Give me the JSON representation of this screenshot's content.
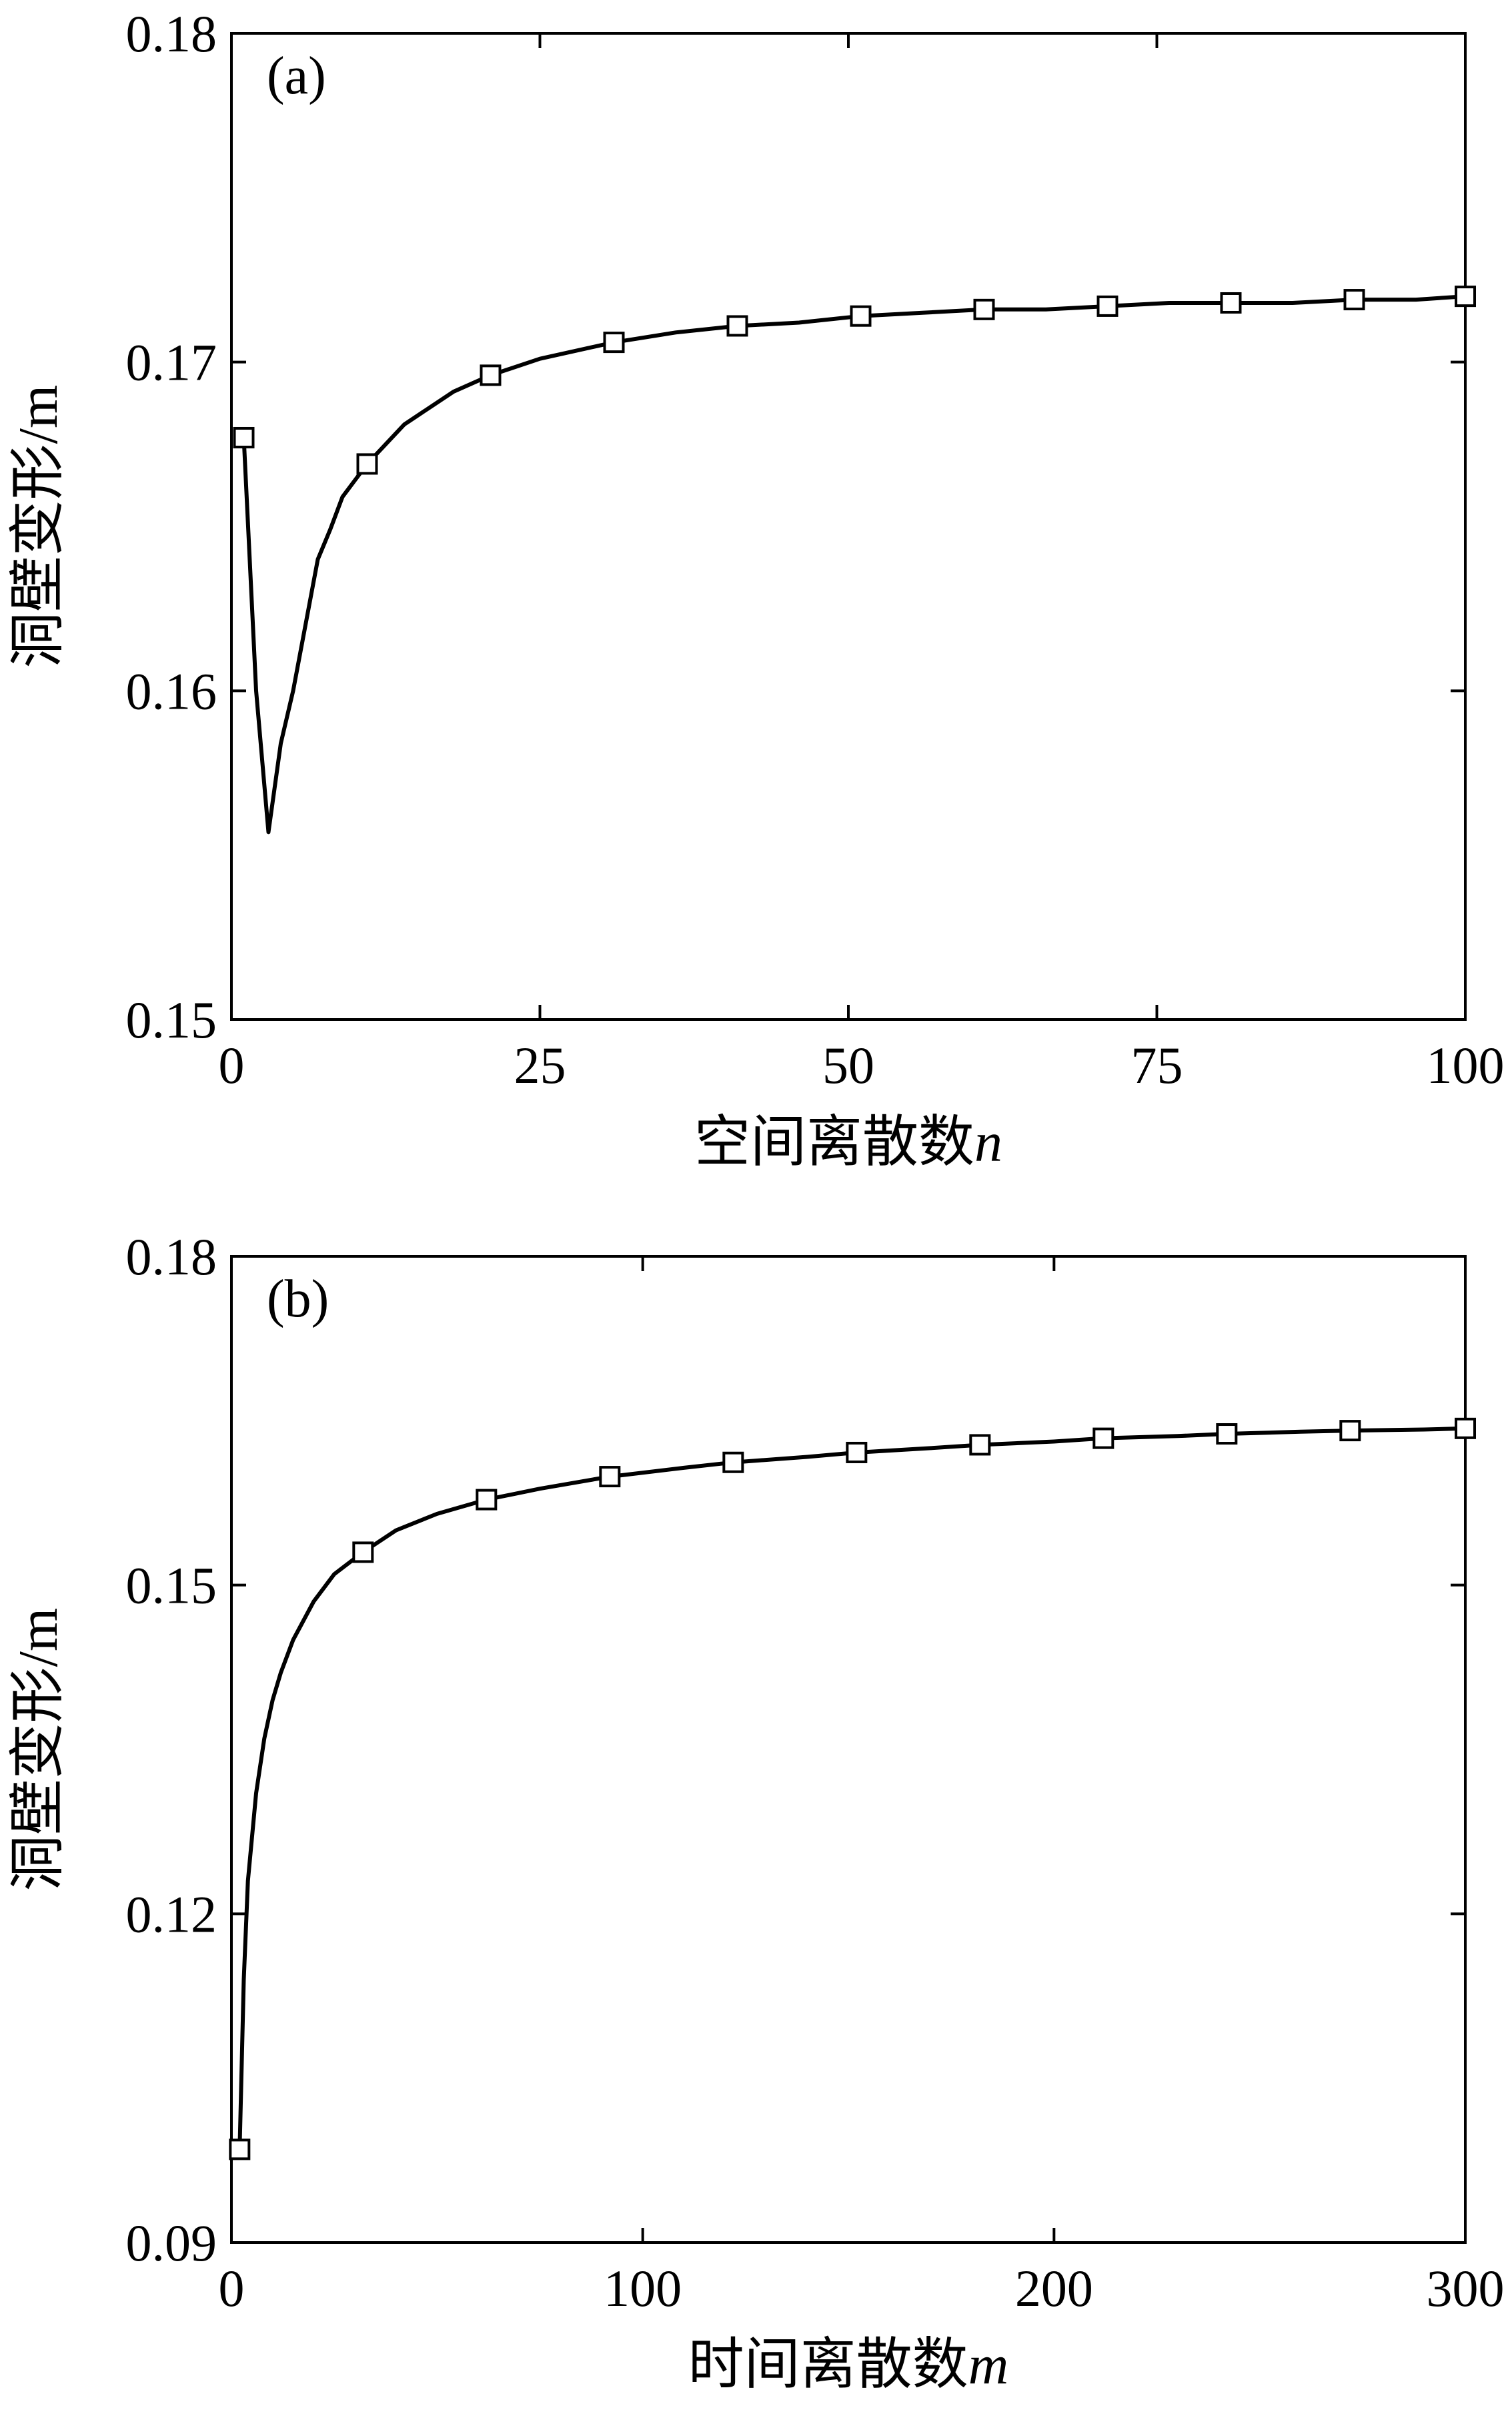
{
  "chart_data": [
    {
      "type": "line",
      "panel_label": "(a)",
      "xlabel": "空间离散数",
      "xlabel_var": "n",
      "ylabel": "洞壁变形/m",
      "xlim": [
        0,
        100
      ],
      "ylim": [
        0.15,
        0.18
      ],
      "x_ticks": [
        "0",
        "25",
        "50",
        "75",
        "100"
      ],
      "y_ticks": [
        "0.15",
        "0.16",
        "0.17",
        "0.18"
      ],
      "legend": "none",
      "grid": false,
      "marker": "open-square",
      "series": [
        {
          "x": [
            1,
            2,
            3,
            4,
            5,
            6,
            7,
            8,
            9,
            10,
            11,
            12,
            14,
            16,
            18,
            21,
            25,
            31,
            36,
            41,
            46,
            51,
            56,
            61,
            66,
            71,
            76,
            81,
            86,
            91,
            96,
            100
          ],
          "y": [
            0.1677,
            0.16,
            0.1557,
            0.1584,
            0.16,
            0.162,
            0.164,
            0.1649,
            0.1659,
            0.1664,
            0.1669,
            0.1673,
            0.1681,
            0.1686,
            0.1691,
            0.1696,
            0.1701,
            0.1706,
            0.1709,
            0.1711,
            0.1712,
            0.1714,
            0.1715,
            0.1716,
            0.1716,
            0.1717,
            0.1718,
            0.1718,
            0.1718,
            0.1719,
            0.1719,
            0.172
          ],
          "markers_x": [
            1,
            11,
            21,
            31,
            41,
            51,
            61,
            71,
            81,
            91,
            100
          ],
          "markers_y": [
            0.1677,
            0.1669,
            0.1696,
            0.1706,
            0.1711,
            0.1714,
            0.1716,
            0.1717,
            0.1718,
            0.1719,
            0.172
          ]
        }
      ]
    },
    {
      "type": "line",
      "panel_label": "(b)",
      "xlabel": "时间离散数",
      "xlabel_var": "m",
      "ylabel": "洞壁变形/m",
      "xlim": [
        0,
        300
      ],
      "ylim": [
        0.09,
        0.18
      ],
      "x_ticks": [
        "0",
        "100",
        "200",
        "300"
      ],
      "y_ticks": [
        "0.09",
        "0.12",
        "0.15",
        "0.18"
      ],
      "legend": "none",
      "grid": false,
      "marker": "open-square",
      "series": [
        {
          "x": [
            2,
            3,
            4,
            6,
            8,
            10,
            12,
            15,
            20,
            25,
            32,
            40,
            50,
            62,
            75,
            92,
            110,
            122,
            140,
            152,
            170,
            182,
            200,
            212,
            230,
            242,
            260,
            272,
            290,
            300
          ],
          "y": [
            0.0985,
            0.114,
            0.123,
            0.131,
            0.136,
            0.1395,
            0.142,
            0.145,
            0.1485,
            0.151,
            0.153,
            0.155,
            0.1565,
            0.1578,
            0.1588,
            0.1599,
            0.1607,
            0.1612,
            0.1617,
            0.1621,
            0.1625,
            0.1628,
            0.1631,
            0.1634,
            0.1636,
            0.1638,
            0.164,
            0.1641,
            0.1642,
            0.1643
          ],
          "markers_x": [
            2,
            32,
            62,
            92,
            122,
            152,
            182,
            212,
            242,
            272,
            300
          ],
          "markers_y": [
            0.0985,
            0.153,
            0.1578,
            0.1599,
            0.1612,
            0.1621,
            0.1628,
            0.1634,
            0.1638,
            0.1641,
            0.1643
          ]
        }
      ]
    }
  ]
}
